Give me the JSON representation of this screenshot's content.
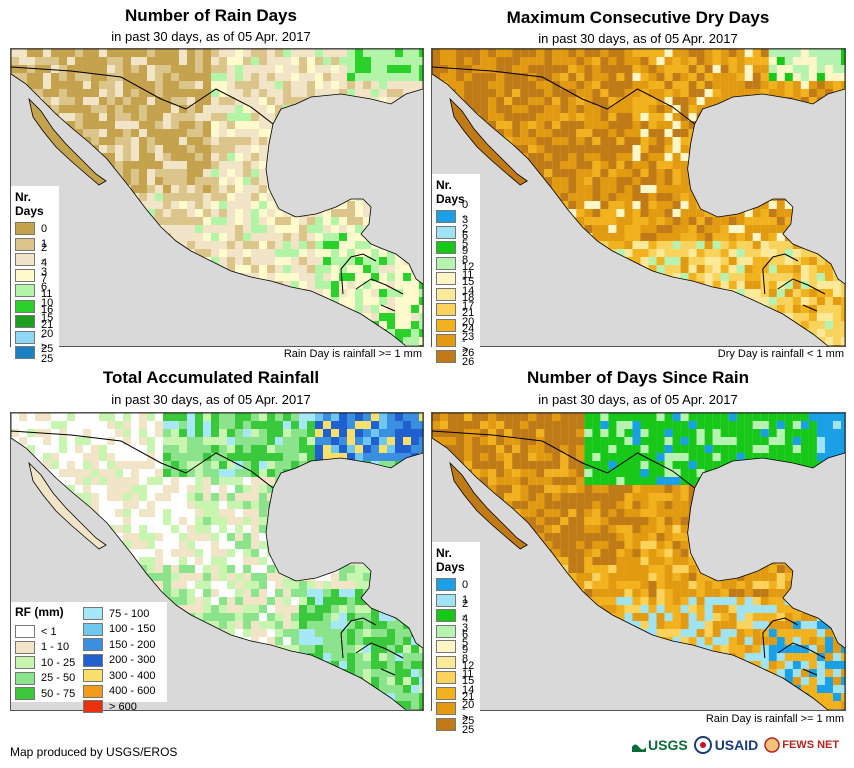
{
  "panels": [
    {
      "title": "Number of Rain Days",
      "subtitle": "in past 30 days, as of 05 Apr. 2017",
      "note": "Rain Day is rainfall >= 1 mm",
      "legend_title": "Nr. Days",
      "legend": [
        {
          "label": "0",
          "color": "#c4a24e"
        },
        {
          "label": "1",
          "color": "#dcc58a"
        },
        {
          "label": "2 - 3",
          "color": "#f2e4c6"
        },
        {
          "label": "4 - 6",
          "color": "#fffbcc"
        },
        {
          "label": "7 - 10",
          "color": "#b2f5a6"
        },
        {
          "label": "11 - 15",
          "color": "#2bd12b"
        },
        {
          "label": "16 - 20",
          "color": "#1e9e1e"
        },
        {
          "label": "21 - 25",
          "color": "#8fd8f5"
        },
        {
          "label": "> 25",
          "color": "#1c7fc4"
        }
      ]
    },
    {
      "title": "Maximum Consecutive Dry Days",
      "subtitle": "in past 30 days, as of 05 Apr. 2017",
      "note": "Dry Day is rainfall < 1 mm",
      "legend_title": "Nr. Days",
      "legend": [
        {
          "label": "0 - 2",
          "color": "#1aa0e6"
        },
        {
          "label": "3 - 5",
          "color": "#9fe3f5"
        },
        {
          "label": "6 - 8",
          "color": "#18c818"
        },
        {
          "label": "9 - 11",
          "color": "#b6f2b0"
        },
        {
          "label": "12 - 14",
          "color": "#fdf7c8"
        },
        {
          "label": "15 - 17",
          "color": "#fde99a"
        },
        {
          "label": "18 - 20",
          "color": "#f9d35c"
        },
        {
          "label": "21 - 23",
          "color": "#f2b21e"
        },
        {
          "label": "24 - 26",
          "color": "#e29a10"
        },
        {
          "label": "> 26",
          "color": "#c07a16"
        }
      ]
    },
    {
      "title": "Total Accumulated Rainfall",
      "subtitle": "in past 30 days, as of 05 Apr. 2017",
      "legend_title": "RF (mm)",
      "legend": [
        {
          "label": "< 1",
          "color": "#ffffff"
        },
        {
          "label": "1 - 10",
          "color": "#f2e4c6"
        },
        {
          "label": "10 - 25",
          "color": "#c8f5b0"
        },
        {
          "label": "25 - 50",
          "color": "#8be38b"
        },
        {
          "label": "50 - 75",
          "color": "#3cc83c"
        },
        {
          "label": "75 - 100",
          "color": "#a6e8f7"
        },
        {
          "label": "100 - 150",
          "color": "#6fc6ef"
        },
        {
          "label": "150 - 200",
          "color": "#3a8fe0"
        },
        {
          "label": "200 - 300",
          "color": "#1f5fcf"
        },
        {
          "label": "300 - 400",
          "color": "#f9e06a"
        },
        {
          "label": "400 - 600",
          "color": "#f39b1a"
        },
        {
          "label": "> 600",
          "color": "#e8320c"
        }
      ]
    },
    {
      "title": "Number of Days Since Rain",
      "subtitle": "in past 30 days, as of 05 Apr. 2017",
      "note": "Rain Day is rainfall >= 1 mm",
      "legend_title": "Nr. Days",
      "legend": [
        {
          "label": "0",
          "color": "#1aa0e6"
        },
        {
          "label": "1",
          "color": "#9fe3f5"
        },
        {
          "label": "2 - 3",
          "color": "#18c818"
        },
        {
          "label": "4 - 5",
          "color": "#b6f2b0"
        },
        {
          "label": "6 - 8",
          "color": "#fdf7c8"
        },
        {
          "label": "9 - 11",
          "color": "#fde99a"
        },
        {
          "label": "12 - 14",
          "color": "#f9d35c"
        },
        {
          "label": "15 - 20",
          "color": "#f2b21e"
        },
        {
          "label": "21 - 25",
          "color": "#e29a10"
        },
        {
          "label": "> 25",
          "color": "#c07a16"
        }
      ]
    }
  ],
  "footer": {
    "credit": "Map produced by USGS/EROS",
    "logos": [
      "USGS",
      "USAID",
      "FEWS NET"
    ]
  },
  "colors": {
    "ocean": "#d9d9d9",
    "border": "#000000"
  }
}
